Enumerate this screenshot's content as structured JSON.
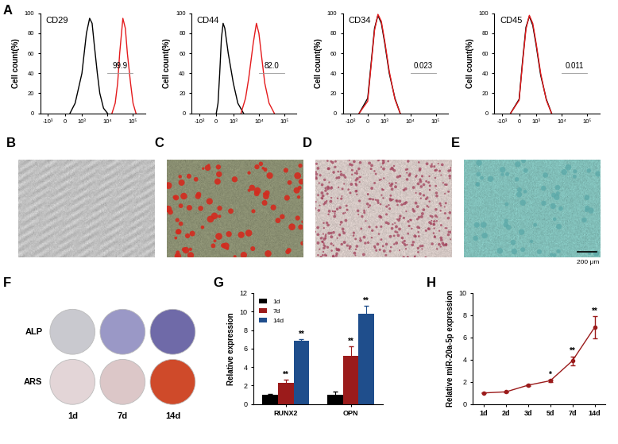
{
  "chart_data": [
    {
      "panel": "A",
      "type": "density",
      "title": "CD29",
      "ylabel": "Cell count(%)",
      "log": "x",
      "xlim": [
        -2000,
        300000
      ],
      "ylim": [
        0,
        100
      ],
      "xticks": [
        {
          "value": -1000,
          "label": "-10³"
        },
        0,
        {
          "value": 1000,
          "label": "10³"
        },
        {
          "value": 10000,
          "label": "10⁴"
        },
        {
          "value": 100000,
          "label": "10⁵"
        }
      ],
      "yticks": [
        0,
        20,
        40,
        60,
        80,
        100
      ],
      "series": [
        {
          "color": "#000000",
          "x": [
            300,
            600,
            1000,
            1500,
            2000,
            2500,
            3000,
            4000,
            5000,
            7000,
            10000
          ],
          "values": [
            0,
            10,
            40,
            80,
            95,
            90,
            70,
            40,
            20,
            5,
            0
          ]
        },
        {
          "color": "#e41a1c",
          "x": [
            15000,
            20000,
            25000,
            30000,
            40000,
            50000,
            60000,
            80000,
            100000,
            130000
          ],
          "values": [
            0,
            10,
            30,
            60,
            95,
            85,
            60,
            30,
            10,
            0
          ]
        }
      ],
      "gate": {
        "x": [
          10000,
          100000
        ],
        "y": 40,
        "percent": 99.9
      }
    },
    {
      "type": "density",
      "title": "CD44",
      "ylabel": "Cell count(%)",
      "log": "x",
      "xlim": [
        -2000,
        300000
      ],
      "ylim": [
        0,
        100
      ],
      "xticks": [
        {
          "value": -1000,
          "label": "-10³"
        },
        0,
        {
          "value": 1000,
          "label": "10³"
        },
        {
          "value": 10000,
          "label": "10⁴"
        },
        {
          "value": 100000,
          "label": "10⁵"
        }
      ],
      "yticks": [
        0,
        20,
        40,
        60,
        80,
        100
      ],
      "series": [
        {
          "color": "#000000",
          "x": [
            0,
            100,
            200,
            300,
            400,
            500,
            700,
            1000,
            1500,
            2500
          ],
          "values": [
            0,
            10,
            40,
            75,
            90,
            85,
            60,
            30,
            10,
            0
          ]
        },
        {
          "color": "#e41a1c",
          "x": [
            2000,
            3000,
            4000,
            6000,
            8000,
            10000,
            13000,
            17000,
            25000,
            40000
          ],
          "values": [
            0,
            15,
            35,
            70,
            90,
            80,
            55,
            30,
            10,
            0
          ]
        }
      ],
      "gate": {
        "x": [
          10000,
          100000
        ],
        "y": 40,
        "percent": 82.0
      }
    },
    {
      "type": "density",
      "title": "CD34",
      "ylabel": "Cell count(%)",
      "log": "x",
      "xlim": [
        -2000,
        300000
      ],
      "ylim": [
        0,
        100
      ],
      "xticks": [
        {
          "value": -1000,
          "label": "-10³"
        },
        0,
        {
          "value": 1000,
          "label": "10³"
        },
        {
          "value": 10000,
          "label": "10⁴"
        },
        {
          "value": 100000,
          "label": "10⁵"
        }
      ],
      "yticks": [
        0,
        20,
        40,
        60,
        80,
        100
      ],
      "series": [
        {
          "color": "#000000",
          "x": [
            -500,
            0,
            200,
            400,
            600,
            800,
            1000,
            1500,
            2500,
            4000
          ],
          "values": [
            0,
            15,
            50,
            85,
            98,
            90,
            70,
            40,
            15,
            0
          ]
        },
        {
          "color": "#e41a1c",
          "x": [
            -500,
            0,
            200,
            400,
            600,
            800,
            1000,
            1500,
            2500,
            4000
          ],
          "values": [
            0,
            12,
            48,
            83,
            99,
            92,
            72,
            42,
            14,
            0
          ]
        }
      ],
      "gate": {
        "x": [
          10000,
          100000
        ],
        "y": 40,
        "percent": 0.023
      }
    },
    {
      "type": "density",
      "title": "CD45",
      "ylabel": "Cell count(%)",
      "log": "x",
      "xlim": [
        -2000,
        300000
      ],
      "ylim": [
        0,
        100
      ],
      "xticks": [
        {
          "value": -1000,
          "label": "-10³"
        },
        0,
        {
          "value": 1000,
          "label": "10³"
        },
        {
          "value": 10000,
          "label": "10⁴"
        },
        {
          "value": 100000,
          "label": "10⁵"
        }
      ],
      "yticks": [
        0,
        20,
        40,
        60,
        80,
        100
      ],
      "series": [
        {
          "color": "#000000",
          "x": [
            -500,
            0,
            200,
            400,
            600,
            800,
            1000,
            1500,
            2500,
            4000
          ],
          "values": [
            0,
            14,
            52,
            86,
            97,
            88,
            68,
            38,
            14,
            0
          ]
        },
        {
          "color": "#e41a1c",
          "x": [
            -500,
            0,
            200,
            400,
            600,
            800,
            1000,
            1500,
            2500,
            4000
          ],
          "values": [
            0,
            13,
            50,
            84,
            98,
            90,
            70,
            40,
            13,
            0
          ]
        }
      ],
      "gate": {
        "x": [
          10000,
          100000
        ],
        "y": 40,
        "percent": 0.011
      }
    },
    {
      "panel": "B",
      "type": "image",
      "colors": [
        "#cfcfcf",
        "#a8a8a8"
      ]
    },
    {
      "panel": "C",
      "type": "image",
      "colors": [
        "#8f9476",
        "#d42a1e"
      ]
    },
    {
      "panel": "D",
      "type": "image",
      "colors": [
        "#ddd0cc",
        "#a1405a"
      ]
    },
    {
      "panel": "E",
      "type": "image",
      "colors": [
        "#86c6c0",
        "#5aa8a8"
      ],
      "scale_bar": "200 μm"
    },
    {
      "panel": "F",
      "type": "plate",
      "rows": [
        "ALP",
        "ARS"
      ],
      "columns": [
        "1d",
        "7d",
        "14d"
      ],
      "colors": [
        [
          "#c9c9cf",
          "#9a98c6",
          "#6f6aa8"
        ],
        [
          "#e3d5d7",
          "#dcc7c8",
          "#cf4a2a"
        ]
      ]
    },
    {
      "panel": "G",
      "type": "bar",
      "ylabel": "Relative expression",
      "categories": [
        "RUNX2",
        "OPN"
      ],
      "ylim": [
        0,
        12
      ],
      "yticks": [
        0,
        2,
        4,
        6,
        8,
        10,
        12
      ],
      "legend": "upper left",
      "series": [
        {
          "name": "1d",
          "color": "#000000",
          "values": [
            1,
            1
          ],
          "errors": [
            0.05,
            0.35
          ],
          "significance": [
            null,
            null
          ]
        },
        {
          "name": "7d",
          "color": "#9b1b1b",
          "values": [
            2.3,
            5.2
          ],
          "errors": [
            0.3,
            1.0
          ],
          "significance": [
            "**",
            "**"
          ]
        },
        {
          "name": "14d",
          "color": "#1f4e8c",
          "values": [
            6.8,
            9.8
          ],
          "errors": [
            0.2,
            0.8
          ],
          "significance": [
            "**",
            "**"
          ]
        }
      ]
    },
    {
      "panel": "H",
      "type": "line",
      "ylabel": "Relative miR-20a-5p expression",
      "categories": [
        "1d",
        "2d",
        "3d",
        "5d",
        "7d",
        "14d"
      ],
      "ylim": [
        0,
        10
      ],
      "yticks": [
        0,
        2,
        4,
        6,
        8,
        10
      ],
      "color": "#9b1b1b",
      "marker": "o",
      "line_style": "solid",
      "values": [
        1,
        1.1,
        1.7,
        2.1,
        3.9,
        6.9
      ],
      "errors": [
        0.05,
        0.05,
        0.1,
        0.1,
        0.4,
        1.0
      ],
      "significance": [
        null,
        null,
        null,
        "*",
        "**",
        "**"
      ]
    }
  ]
}
